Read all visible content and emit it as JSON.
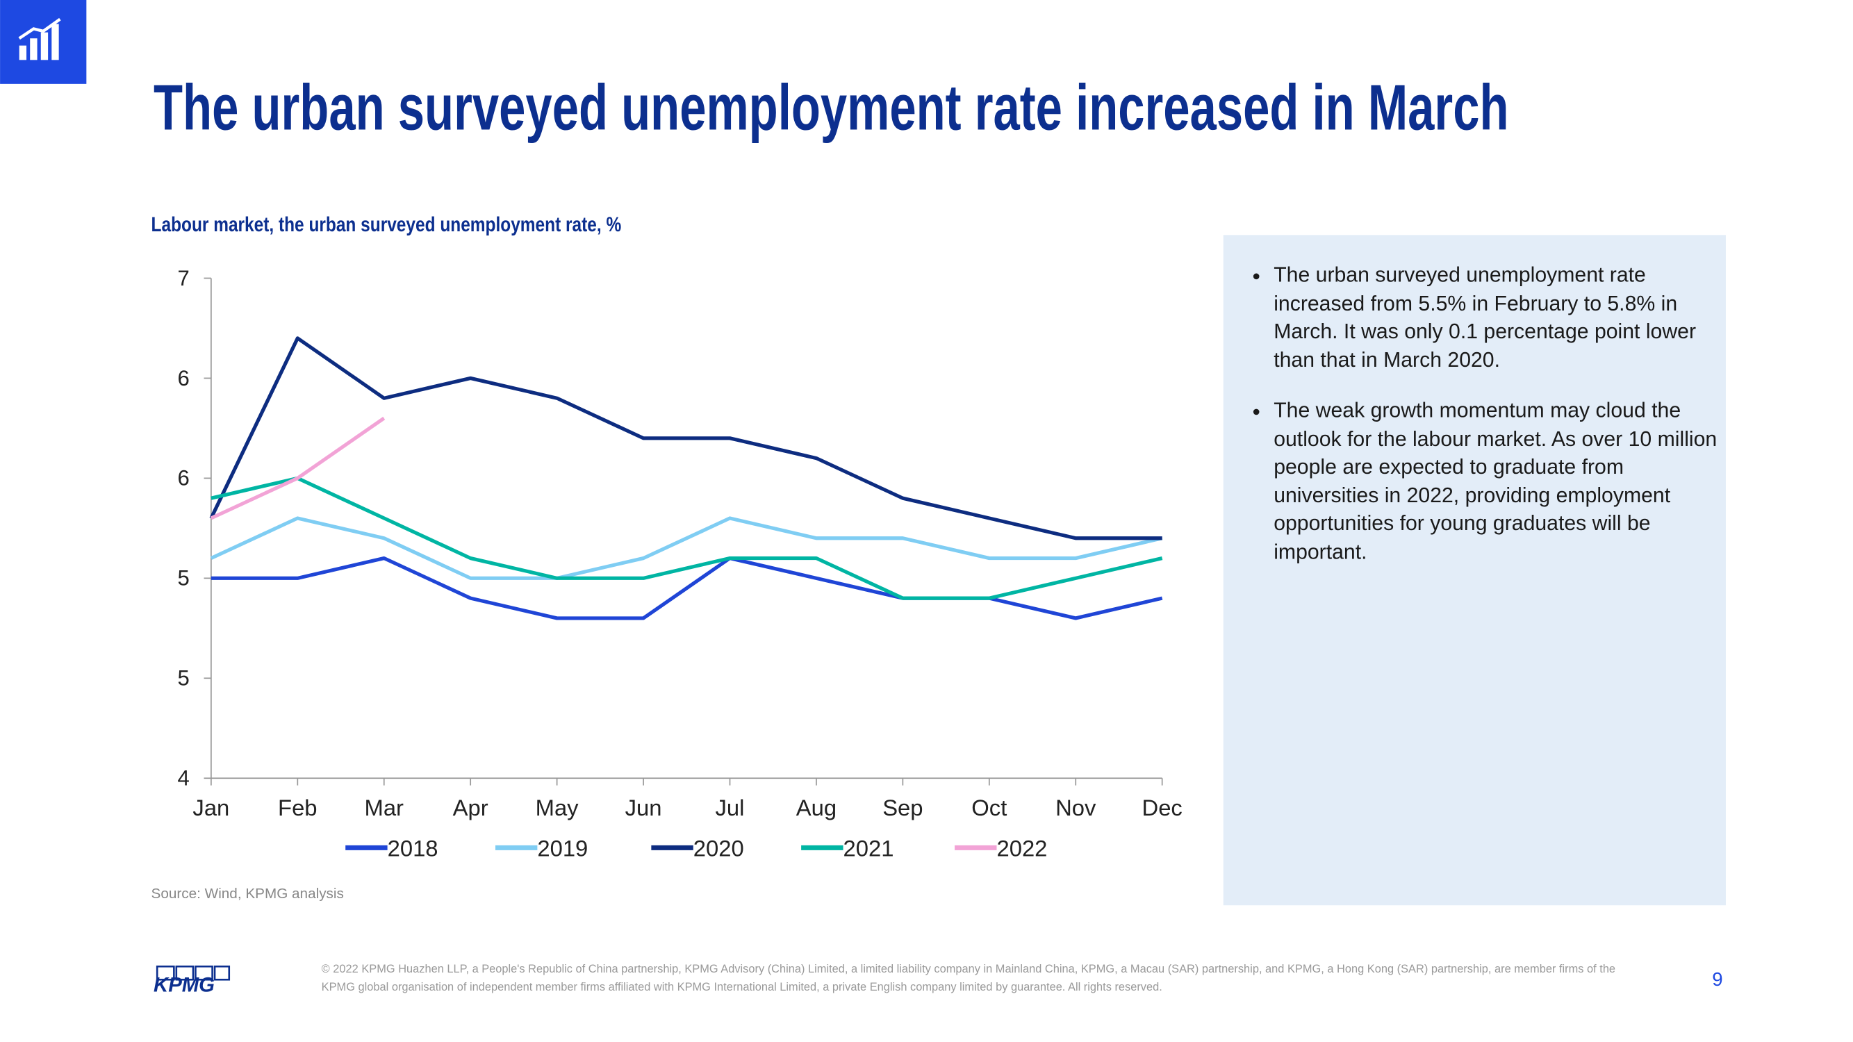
{
  "header": {
    "title": "The urban surveyed unemployment rate increased in March"
  },
  "chart_data": {
    "type": "line",
    "title": "Labour market, the urban surveyed unemployment rate, %",
    "categories": [
      "Jan",
      "Feb",
      "Mar",
      "Apr",
      "May",
      "Jun",
      "Jul",
      "Aug",
      "Sep",
      "Oct",
      "Nov",
      "Dec"
    ],
    "series": [
      {
        "name": "2018",
        "color": "#1f45d6",
        "values": [
          5.0,
          5.0,
          5.1,
          4.9,
          4.8,
          4.8,
          5.1,
          5.0,
          4.9,
          4.9,
          4.8,
          4.9
        ]
      },
      {
        "name": "2019",
        "color": "#7fcdf3",
        "values": [
          5.1,
          5.3,
          5.2,
          5.0,
          5.0,
          5.1,
          5.3,
          5.2,
          5.2,
          5.1,
          5.1,
          5.2
        ]
      },
      {
        "name": "2020",
        "color": "#0d2c80",
        "values": [
          5.3,
          6.2,
          5.9,
          6.0,
          5.9,
          5.7,
          5.7,
          5.6,
          5.4,
          5.3,
          5.2,
          5.2
        ]
      },
      {
        "name": "2021",
        "color": "#00b5a3",
        "values": [
          5.4,
          5.5,
          5.3,
          5.1,
          5.0,
          5.0,
          5.1,
          5.1,
          4.9,
          4.9,
          5.0,
          5.1
        ]
      },
      {
        "name": "2022",
        "color": "#f2a3d6",
        "values": [
          5.3,
          5.5,
          5.8,
          null,
          null,
          null,
          null,
          null,
          null,
          null,
          null,
          null
        ]
      }
    ],
    "ylim": [
      4.0,
      6.5
    ],
    "yticks": [
      {
        "value": 4.0,
        "label": "4"
      },
      {
        "value": 4.5,
        "label": "5"
      },
      {
        "value": 5.0,
        "label": "5"
      },
      {
        "value": 5.5,
        "label": "6"
      },
      {
        "value": 6.0,
        "label": "6"
      },
      {
        "value": 6.5,
        "label": "7"
      }
    ],
    "source": "Source: Wind, KPMG analysis"
  },
  "sidebar": {
    "bullets": [
      "The urban surveyed unemployment rate increased from 5.5% in February to 5.8% in March. It was only 0.1 percentage point lower than that in March 2020.",
      "The weak growth momentum may cloud the outlook for the labour market. As over 10 million people are expected to graduate from universities in 2022, providing employment opportunities for young graduates will be important."
    ]
  },
  "footer": {
    "logo": "KPMG",
    "copyright": "© 2022 KPMG Huazhen LLP, a People's Republic of China partnership, KPMG Advisory (China) Limited, a limited liability company in Mainland China, KPMG, a Macau (SAR) partnership, and KPMG, a Hong Kong (SAR) partnership, are member firms of the KPMG global organisation of independent member firms affiliated with KPMG International Limited, a private English company limited by guarantee. All rights reserved.",
    "page": "9"
  }
}
